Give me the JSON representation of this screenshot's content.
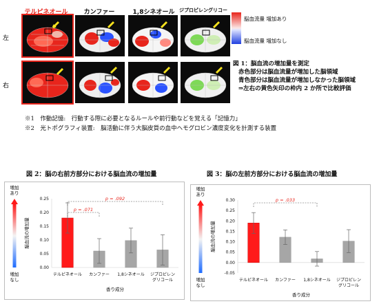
{
  "figure1": {
    "columns": [
      "テルピネオール",
      "カンファー",
      "1,8シネオール",
      "ジプロピレングリコール"
    ],
    "rows": [
      "左",
      "右"
    ],
    "legend": {
      "high": "脳血流量 増加あり",
      "low": "脳血流量 増加なし"
    },
    "caption_lines": [
      "図 1：脳血流の増加量を測定",
      "赤色部分は脳血流量が増加した脳領域",
      "青色部分は脳血流量が増加しなかった脳領域",
      "⇒左右の黄色矢印の枠内 2 か所で比較評価"
    ],
    "colors": {
      "increase": "#e8251c",
      "no_increase": "#1f3fe0",
      "arrow": "#f5e11d"
    }
  },
  "notes": [
    "※1　作動記憶:　行動する際に必要となるルールや前行動などを覚える「記憶力」",
    "※2　光トポグラフィ装置:　脳活動に伴う大脳皮質の血中ヘモグロビン濃度変化を計測する装置"
  ],
  "chart_data": [
    {
      "type": "bar",
      "title": "図 2：脳の右前方部分における脳血流の増加量",
      "categories": [
        "テルピネオール",
        "カンファー",
        "1,8シネオール",
        "ジプロピレン\nグリコール"
      ],
      "values": [
        0.18,
        0.06,
        0.098,
        0.064
      ],
      "errors": [
        0.055,
        0.045,
        0.045,
        0.055
      ],
      "bar_colors": [
        "#ff1a1a",
        "#a6a6a6",
        "#a6a6a6",
        "#a6a6a6"
      ],
      "ylim": [
        0,
        0.25
      ],
      "yticks": [
        "0.00",
        "0.05",
        "0.10",
        "0.15",
        "0.20",
        "0.25"
      ],
      "ylabel": "脳血流の増加量",
      "xlabel": "香り成分",
      "arrow_top": "増加\nあり",
      "arrow_bottom": "増加\nなし",
      "annotations": [
        {
          "from": 0,
          "to": 3,
          "text": "p = .092"
        },
        {
          "from": 0,
          "to": 1,
          "text": "p = .071"
        }
      ]
    },
    {
      "type": "bar",
      "title": "図 3：脳の左前方部分における脳血流の増加量",
      "categories": [
        "テルピネオール",
        "カンファー",
        "1,8シネオール",
        "ジプロピレン\nグリコール"
      ],
      "values": [
        0.19,
        0.122,
        0.018,
        0.103
      ],
      "errors": [
        0.05,
        0.035,
        0.035,
        0.055
      ],
      "bar_colors": [
        "#ff1a1a",
        "#a6a6a6",
        "#a6a6a6",
        "#a6a6a6"
      ],
      "ylim": [
        -0.05,
        0.3
      ],
      "yticks": [
        "-0.05",
        "0.00",
        "0.05",
        "0.10",
        "0.15",
        "0.20",
        "0.25",
        "0.30"
      ],
      "ylabel": "脳血流の増加量",
      "xlabel": "香り成分",
      "arrow_top": "増加\nあり",
      "arrow_bottom": "増加\nなし",
      "annotations": [
        {
          "from": 0,
          "to": 2,
          "text": "p = .033"
        }
      ]
    }
  ]
}
